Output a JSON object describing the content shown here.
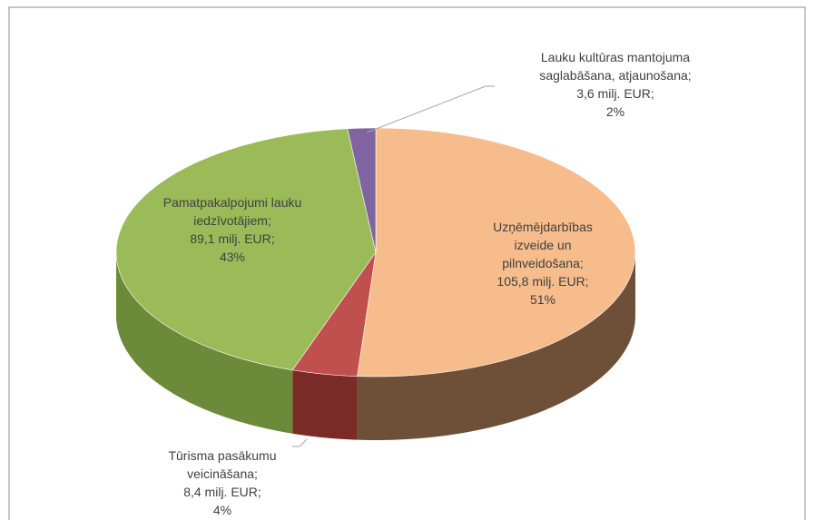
{
  "chart_data": {
    "type": "pie",
    "categories": [
      "Uzņēmējdarbības izveide un pilnveidošana;",
      "Tūrisma pasākumu veicināšana;",
      "Pamatpakalpojumi lauku iedzīvotājiem;",
      "Lauku kultūras mantojuma saglabāšana, atjaunošana;"
    ],
    "values": [
      105.8,
      8.4,
      89.1,
      3.6
    ],
    "value_labels": [
      "105,8 milj. EUR;",
      "8,4 milj. EUR;",
      "89,1 milj. EUR;",
      "3,6 milj. EUR;"
    ],
    "percent_values": [
      51,
      4,
      43,
      2
    ],
    "percent_labels": [
      "51%",
      "4%",
      "43%",
      "2%"
    ],
    "colors": [
      "#f7bc8b",
      "#c0504d",
      "#9bbb59",
      "#8064a2"
    ],
    "side_colors": [
      "#6e5038",
      "#7a2a27",
      "#6b8a3a",
      "#56407a"
    ]
  }
}
